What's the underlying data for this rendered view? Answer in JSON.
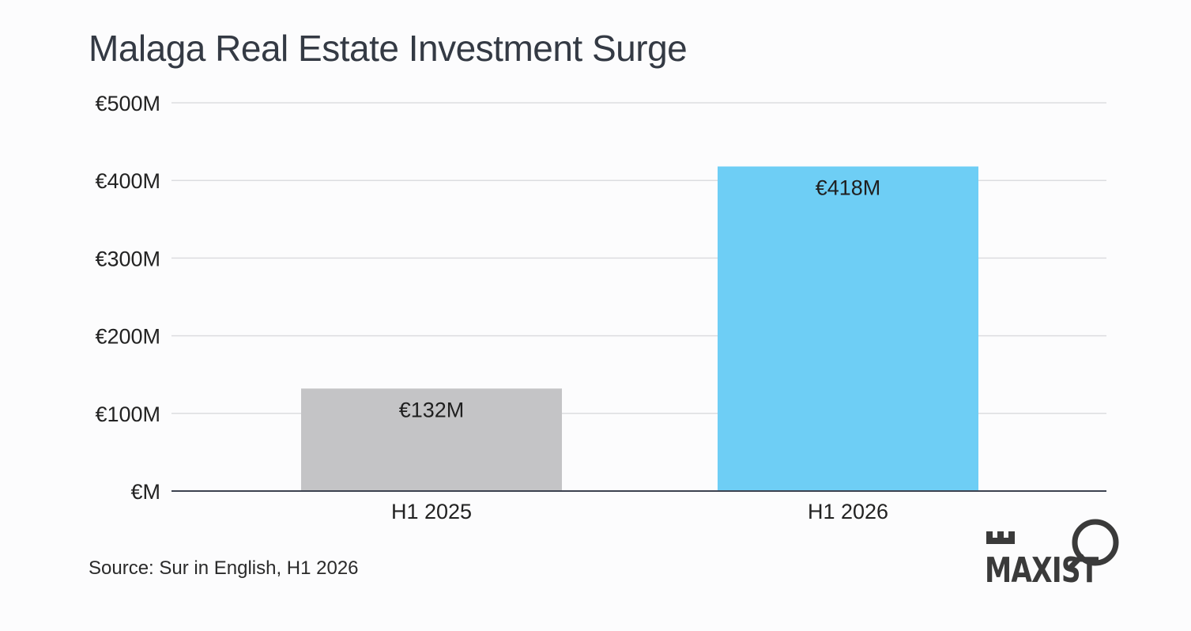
{
  "chart_data": {
    "type": "bar",
    "title": "Malaga Real Estate Investment Surge",
    "categories": [
      "H1 2025",
      "H1 2026"
    ],
    "values": [
      132,
      418
    ],
    "value_labels": [
      "€132M",
      "€418M"
    ],
    "bar_colors": [
      "#c4c4c6",
      "#6ecef5"
    ],
    "ylim": [
      0,
      500
    ],
    "yticks": [
      0,
      100,
      200,
      300,
      400,
      500
    ],
    "ytick_labels": [
      "€M",
      "€100M",
      "€200M",
      "€300M",
      "€400M",
      "€500M"
    ],
    "xlabel": "",
    "ylabel": "",
    "grid": true,
    "legend": "none"
  },
  "source": "Source: Sur in English, H1 2026",
  "logo": {
    "text": "MAXIST",
    "icon": "key-castle-icon",
    "color": "#3a3a3a"
  },
  "colors": {
    "grid": "#dcdde0",
    "axis": "#3c4250",
    "title": "#343a44"
  }
}
